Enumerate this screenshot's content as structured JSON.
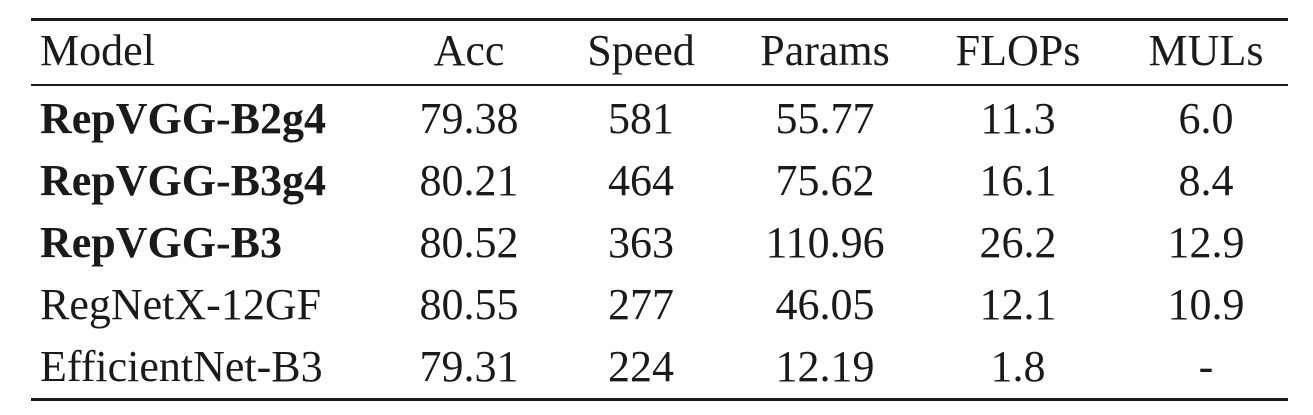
{
  "table": {
    "headers": {
      "model": "Model",
      "acc": "Acc",
      "speed": "Speed",
      "params": "Params",
      "flops": "FLOPs",
      "muls": "MULs"
    },
    "rows": [
      {
        "model": "RepVGG-B2g4",
        "bold": true,
        "acc": "79.38",
        "speed": "581",
        "params": "55.77",
        "flops": "11.3",
        "muls": "6.0"
      },
      {
        "model": "RepVGG-B3g4",
        "bold": true,
        "acc": "80.21",
        "speed": "464",
        "params": "75.62",
        "flops": "16.1",
        "muls": "8.4"
      },
      {
        "model": "RepVGG-B3",
        "bold": true,
        "acc": "80.52",
        "speed": "363",
        "params": "110.96",
        "flops": "26.2",
        "muls": "12.9"
      },
      {
        "model": "RegNetX-12GF",
        "bold": false,
        "acc": "80.55",
        "speed": "277",
        "params": "46.05",
        "flops": "12.1",
        "muls": "10.9"
      },
      {
        "model": "EfficientNet-B3",
        "bold": false,
        "acc": "79.31",
        "speed": "224",
        "params": "12.19",
        "flops": "1.8",
        "muls": "-"
      }
    ]
  }
}
